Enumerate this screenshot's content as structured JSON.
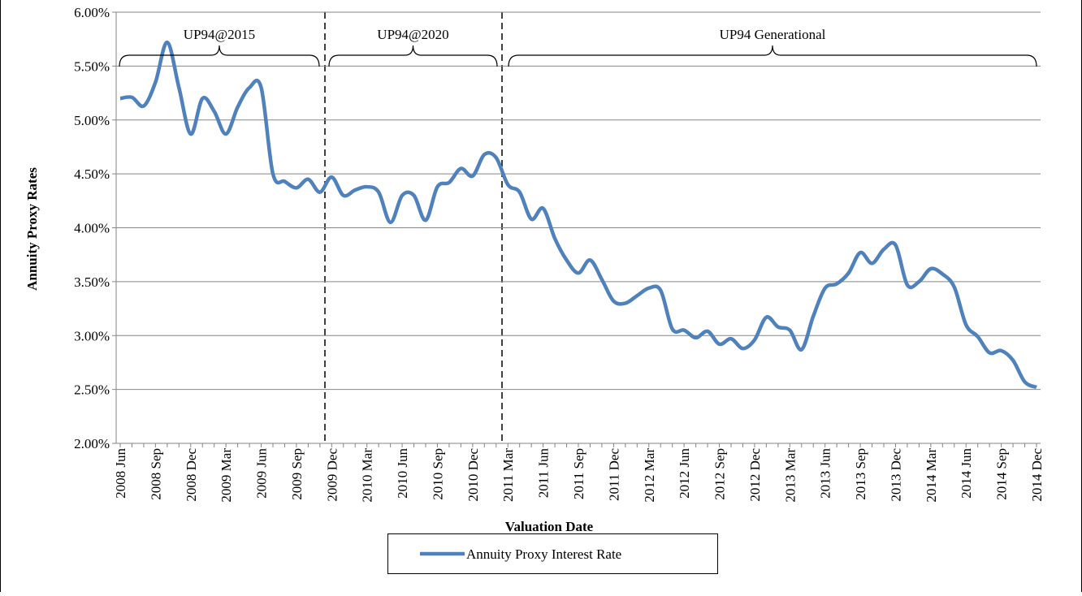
{
  "chart_data": {
    "type": "line",
    "x_label": "Valuation Date",
    "y_label": "Annuity Proxy Rates",
    "categories": [
      "2008 Jun",
      null,
      null,
      "2008 Sep",
      null,
      null,
      "2008 Dec",
      null,
      null,
      "2009 Mar",
      null,
      null,
      "2009 Jun",
      null,
      null,
      "2009 Sep",
      null,
      null,
      "2009 Dec",
      null,
      null,
      "2010 Mar",
      null,
      null,
      "2010 Jun",
      null,
      null,
      "2010 Sep",
      null,
      null,
      "2010 Dec",
      null,
      null,
      "2011 Mar",
      null,
      null,
      "2011 Jun",
      null,
      null,
      "2011 Sep",
      null,
      null,
      "2011 Dec",
      null,
      null,
      "2012 Mar",
      null,
      null,
      "2012 Jun",
      null,
      null,
      "2012 Sep",
      null,
      null,
      "2012 Dec",
      null,
      null,
      "2013 Mar",
      null,
      null,
      "2013 Jun",
      null,
      null,
      "2013 Sep",
      null,
      null,
      "2013 Dec",
      null,
      null,
      "2014 Mar",
      null,
      null,
      "2014 Jun",
      null,
      null,
      "2014 Sep",
      null,
      null,
      "2014 Dec"
    ],
    "series": [
      {
        "name": "Annuity Proxy Interest Rate",
        "color": "#4f81bd",
        "values": [
          5.2,
          5.21,
          5.13,
          5.35,
          5.72,
          5.3,
          4.87,
          5.2,
          5.08,
          4.87,
          5.12,
          5.3,
          5.3,
          4.5,
          4.43,
          4.37,
          4.45,
          4.33,
          4.47,
          4.3,
          4.35,
          4.38,
          4.33,
          4.05,
          4.3,
          4.3,
          4.07,
          4.38,
          4.42,
          4.55,
          4.48,
          4.68,
          4.65,
          4.4,
          4.33,
          4.08,
          4.18,
          3.9,
          3.7,
          3.58,
          3.7,
          3.52,
          3.32,
          3.3,
          3.37,
          3.44,
          3.42,
          3.06,
          3.05,
          2.98,
          3.04,
          2.92,
          2.97,
          2.88,
          2.96,
          3.17,
          3.08,
          3.05,
          2.87,
          3.18,
          3.44,
          3.48,
          3.58,
          3.77,
          3.67,
          3.8,
          3.84,
          3.47,
          3.5,
          3.62,
          3.57,
          3.45,
          3.1,
          2.99,
          2.84,
          2.86,
          2.77,
          2.57,
          2.52
        ]
      }
    ],
    "ylim": [
      2,
      6
    ],
    "yticks": [
      {
        "value": 2,
        "label": "2.00%"
      },
      {
        "value": 2.5,
        "label": "2.50%"
      },
      {
        "value": 3,
        "label": "3.00%"
      },
      {
        "value": 3.5,
        "label": "3.50%"
      },
      {
        "value": 4,
        "label": "4.00%"
      },
      {
        "value": 4.5,
        "label": "4.50%"
      },
      {
        "value": 5,
        "label": "5.00%"
      },
      {
        "value": 5.5,
        "label": "5.50%"
      },
      {
        "value": 6,
        "label": "6.00%"
      }
    ],
    "grid": true,
    "annotations": [
      "UP94@2015",
      "UP94@2020",
      "UP94 Generational"
    ]
  }
}
